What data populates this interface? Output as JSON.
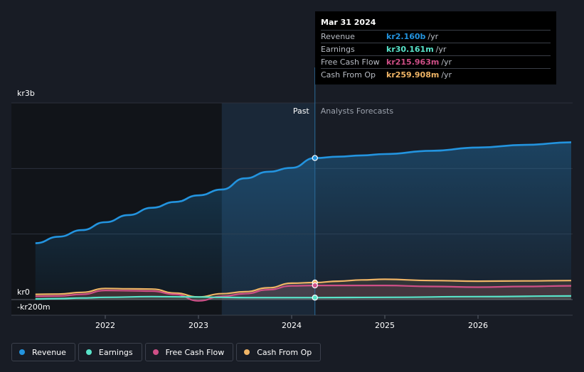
{
  "tooltip": {
    "date": "Mar 31 2024",
    "rows": [
      {
        "label": "Revenue",
        "value": "kr2.160b",
        "unit": "/yr",
        "color": "#2394df"
      },
      {
        "label": "Earnings",
        "value": "kr30.161m",
        "unit": "/yr",
        "color": "#58e3c9"
      },
      {
        "label": "Free Cash Flow",
        "value": "kr215.963m",
        "unit": "/yr",
        "color": "#cf4f87"
      },
      {
        "label": "Cash From Op",
        "value": "kr259.908m",
        "unit": "/yr",
        "color": "#f0b566"
      }
    ]
  },
  "legend": [
    {
      "label": "Revenue",
      "color": "#2394df"
    },
    {
      "label": "Earnings",
      "color": "#58e3c9"
    },
    {
      "label": "Free Cash Flow",
      "color": "#cf4f87"
    },
    {
      "label": "Cash From Op",
      "color": "#f0b566"
    }
  ],
  "chart_data": {
    "type": "line",
    "title": "",
    "xlabel": "",
    "ylabel": "",
    "ylim": [
      -200,
      3000
    ],
    "xlim": [
      2021.25,
      2027.0
    ],
    "y_tick_labels": [
      "kr3b",
      "kr0",
      "-kr200m"
    ],
    "x_tick_labels": [
      "2022",
      "2023",
      "2024",
      "2025",
      "2026"
    ],
    "x_ticks": [
      2022,
      2023,
      2024,
      2025,
      2026
    ],
    "past_label": "Past",
    "forecast_label": "Analysts Forecasts",
    "past_end": 2024.25,
    "shaded_past_start": 2023.25,
    "series": [
      {
        "name": "Revenue",
        "color": "#2394df",
        "x": [
          2021.25,
          2021.5,
          2021.75,
          2022.0,
          2022.25,
          2022.5,
          2022.75,
          2023.0,
          2023.25,
          2023.5,
          2023.75,
          2024.0,
          2024.25,
          2024.5,
          2024.75,
          2025.0,
          2025.5,
          2026.0,
          2026.5,
          2027.0
        ],
        "values": [
          860,
          960,
          1060,
          1180,
          1290,
          1400,
          1490,
          1590,
          1680,
          1850,
          1950,
          2010,
          2160,
          2180,
          2200,
          2220,
          2270,
          2320,
          2360,
          2400
        ]
      },
      {
        "name": "Earnings",
        "color": "#58e3c9",
        "x": [
          2021.25,
          2021.5,
          2021.75,
          2022.0,
          2022.5,
          2023.0,
          2023.25,
          2023.5,
          2024.0,
          2024.25,
          2025.0,
          2026.0,
          2027.0
        ],
        "values": [
          10,
          15,
          25,
          35,
          45,
          40,
          35,
          30,
          30,
          30,
          35,
          45,
          55
        ]
      },
      {
        "name": "Free Cash Flow",
        "color": "#cf4f87",
        "x": [
          2021.25,
          2021.5,
          2021.75,
          2022.0,
          2022.25,
          2022.5,
          2022.75,
          2023.0,
          2023.25,
          2023.5,
          2023.75,
          2024.0,
          2024.25,
          2025.0,
          2025.5,
          2026.0,
          2026.5,
          2027.0
        ],
        "values": [
          50,
          55,
          80,
          140,
          135,
          130,
          80,
          -20,
          50,
          90,
          150,
          210,
          216,
          215,
          200,
          190,
          200,
          210
        ]
      },
      {
        "name": "Cash From Op",
        "color": "#f0b566",
        "x": [
          2021.25,
          2021.5,
          2021.75,
          2022.0,
          2022.25,
          2022.5,
          2022.75,
          2023.0,
          2023.25,
          2023.5,
          2023.75,
          2024.0,
          2024.25,
          2024.5,
          2024.75,
          2025.0,
          2025.5,
          2026.0,
          2026.5,
          2027.0
        ],
        "values": [
          80,
          85,
          110,
          170,
          165,
          160,
          100,
          40,
          90,
          120,
          180,
          250,
          260,
          280,
          300,
          310,
          290,
          280,
          285,
          290
        ]
      }
    ],
    "markers": [
      {
        "series": "Revenue",
        "x": 2024.25,
        "value": 2160
      },
      {
        "series": "Cash From Op",
        "x": 2024.25,
        "value": 260
      },
      {
        "series": "Free Cash Flow",
        "x": 2024.25,
        "value": 216
      },
      {
        "series": "Earnings",
        "x": 2024.25,
        "value": 30
      }
    ]
  }
}
